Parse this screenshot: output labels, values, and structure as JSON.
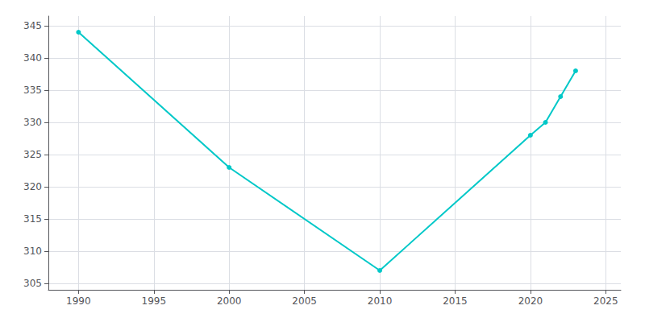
{
  "chart_data": {
    "type": "line",
    "x": [
      1990,
      2000,
      2010,
      2020,
      2021,
      2022,
      2023
    ],
    "values": [
      344,
      323,
      307,
      328,
      330,
      334,
      338
    ],
    "color": "#00C8C8",
    "marker": "circle",
    "xlim": [
      1988,
      2026
    ],
    "ylim": [
      304,
      346.5
    ],
    "xticks": [
      1990,
      1995,
      2000,
      2005,
      2010,
      2015,
      2020,
      2025
    ],
    "yticks": [
      305,
      310,
      315,
      320,
      325,
      330,
      335,
      340,
      345
    ],
    "grid": true
  }
}
